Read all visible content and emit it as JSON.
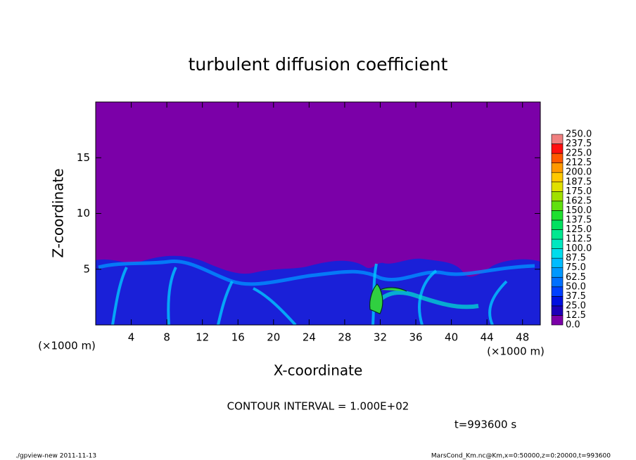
{
  "chart_data": {
    "type": "contour",
    "title": "turbulent diffusion coefficient",
    "x_label": "X-coordinate",
    "y_label": "Z-coordinate",
    "x_unit": "(×1000 m)",
    "y_unit": "(×1000 m)",
    "xlim": [
      0,
      50
    ],
    "ylim": [
      0,
      20
    ],
    "xticks": [
      4,
      8,
      12,
      16,
      20,
      24,
      28,
      32,
      36,
      40,
      44,
      48
    ],
    "yticks": [
      5,
      10,
      15
    ],
    "levels": [
      {
        "value": 0,
        "label": "0.0"
      },
      12.5,
      {
        "value": 25,
        "label": "25.0"
      },
      37.5,
      {
        "value": 50,
        "label": "50.0"
      },
      62.5,
      {
        "value": 75,
        "label": "75.0"
      },
      87.5,
      {
        "value": 100,
        "label": "100.0"
      },
      112.5,
      {
        "value": 125,
        "label": "125.0"
      },
      137.5,
      {
        "value": 150,
        "label": "150.0"
      },
      162.5,
      {
        "value": 175,
        "label": "175.0"
      },
      187.5,
      {
        "value": 200,
        "label": "200.0"
      },
      212.5,
      {
        "value": 225,
        "label": "225.0"
      },
      237.5,
      {
        "value": 250,
        "label": "250.0"
      }
    ],
    "colors": [
      "#7b00a8",
      "#1c00b8",
      "#0010e0",
      "#0040ff",
      "#0070ff",
      "#0098ff",
      "#00bcff",
      "#00dcec",
      "#00e8c0",
      "#00e890",
      "#00e060",
      "#20e030",
      "#60e010",
      "#a0e000",
      "#e0e000",
      "#ffc800",
      "#ff9800",
      "#ff5800",
      "#ff1010",
      "#f08080"
    ],
    "annotation": "CONTOUR INTERVAL = 1.000E+02",
    "time_label": "t=993600 s",
    "footer_left": "./gpview-new  2011-11-13",
    "footer_right": "MarsCond_Km.nc@Km,x=0:50000,z=0:20000,t=993600"
  }
}
